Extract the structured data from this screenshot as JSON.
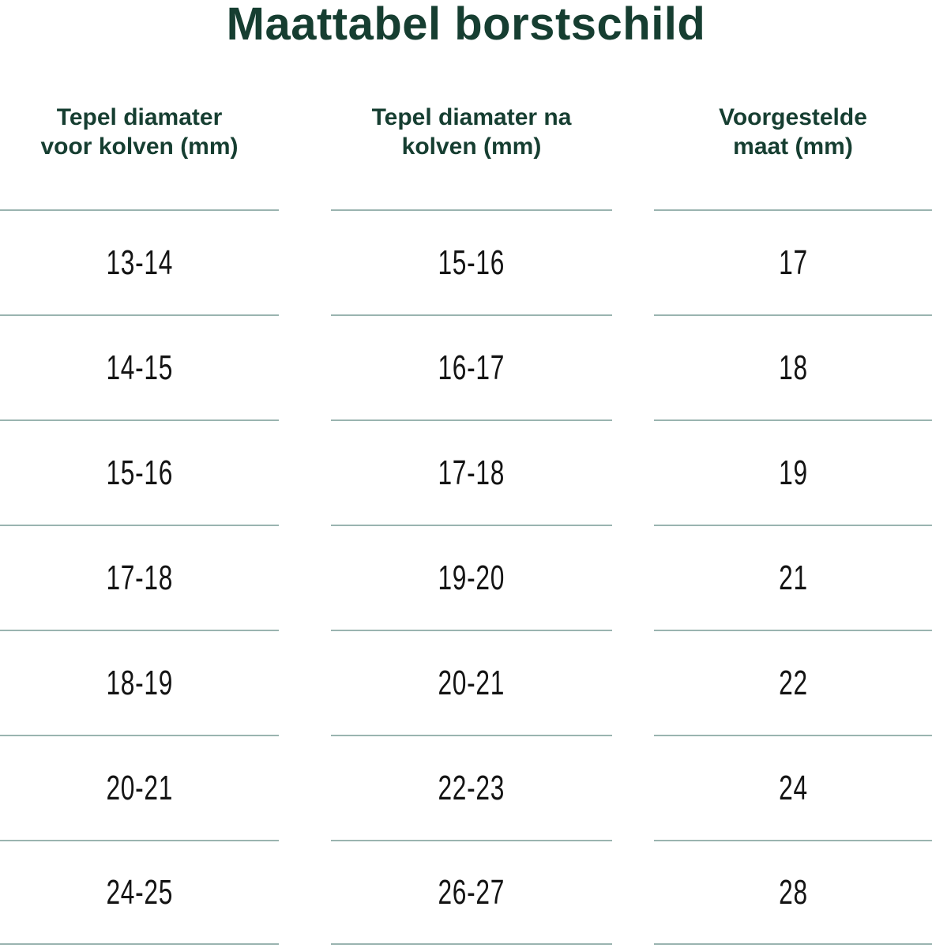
{
  "title": "Maattabel borstschild",
  "table": {
    "columns": [
      {
        "header_line1": "Tepel diamater",
        "header_line2": "voor kolven (mm)"
      },
      {
        "header_line1": "Tepel diamater na",
        "header_line2": "kolven (mm)"
      },
      {
        "header_line1": "Voorgestelde",
        "header_line2": "maat (mm)"
      }
    ],
    "rows": [
      {
        "before": "13-14",
        "after": "15-16",
        "size": "17"
      },
      {
        "before": "14-15",
        "after": "16-17",
        "size": "18"
      },
      {
        "before": "15-16",
        "after": "17-18",
        "size": "19"
      },
      {
        "before": "17-18",
        "after": "19-20",
        "size": "21"
      },
      {
        "before": "18-19",
        "after": "20-21",
        "size": "22"
      },
      {
        "before": "20-21",
        "after": "22-23",
        "size": "24"
      },
      {
        "before": "24-25",
        "after": "26-27",
        "size": "28"
      }
    ]
  },
  "chart_data": {
    "type": "table",
    "title": "Maattabel borstschild",
    "columns": [
      "Tepel diamater voor kolven (mm)",
      "Tepel diamater na kolven (mm)",
      "Voorgestelde maat (mm)"
    ],
    "rows": [
      [
        "13-14",
        "15-16",
        "17"
      ],
      [
        "14-15",
        "16-17",
        "18"
      ],
      [
        "15-16",
        "17-18",
        "19"
      ],
      [
        "17-18",
        "19-20",
        "21"
      ],
      [
        "18-19",
        "20-21",
        "22"
      ],
      [
        "20-21",
        "22-23",
        "24"
      ],
      [
        "24-25",
        "26-27",
        "28"
      ]
    ]
  },
  "colors": {
    "heading_text": "#163e31",
    "cell_text": "#141414",
    "divider": "#9ab4b0",
    "background": "#ffffff"
  }
}
